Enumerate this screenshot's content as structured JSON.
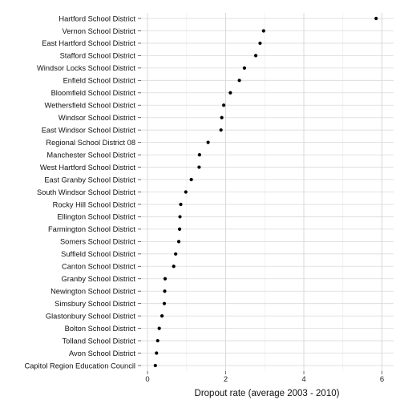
{
  "chart_data": {
    "type": "scatter",
    "title": "",
    "xlabel": "Dropout rate (average 2003 - 2010)",
    "ylabel": "",
    "xlim": [
      0,
      6.0
    ],
    "x_ticks": [
      0,
      2,
      4,
      6
    ],
    "x_tick_labels": [
      "0",
      "2",
      "4",
      "6"
    ],
    "grid": true,
    "categories": [
      "Hartford School District",
      "Vernon School District",
      "East Hartford School District",
      "Stafford School District",
      "Windsor Locks School District",
      "Enfield School District",
      "Bloomfield School District",
      "Wethersfield School District",
      "Windsor School District",
      "East Windsor School District",
      "Regional School District 08",
      "Manchester School District",
      "West Hartford School District",
      "East Granby School District",
      "South Windsor School District",
      "Rocky Hill School District",
      "Ellington School District",
      "Farmington School District",
      "Somers School District",
      "Suffield School District",
      "Canton School District",
      "Granby School District",
      "Newington School District",
      "Simsbury School District",
      "Glastonbury School District",
      "Bolton School District",
      "Tolland School District",
      "Avon School District",
      "Capitol Region Education Council"
    ],
    "values": [
      5.85,
      2.97,
      2.88,
      2.77,
      2.48,
      2.35,
      2.12,
      1.95,
      1.9,
      1.88,
      1.55,
      1.33,
      1.32,
      1.12,
      0.98,
      0.85,
      0.83,
      0.82,
      0.8,
      0.72,
      0.67,
      0.45,
      0.44,
      0.43,
      0.37,
      0.3,
      0.26,
      0.23,
      0.2
    ],
    "colors": {
      "point": "#000000",
      "grid_major": "#d9d9d9",
      "grid_minor": "#efefef",
      "axis_text": "#222222"
    }
  }
}
